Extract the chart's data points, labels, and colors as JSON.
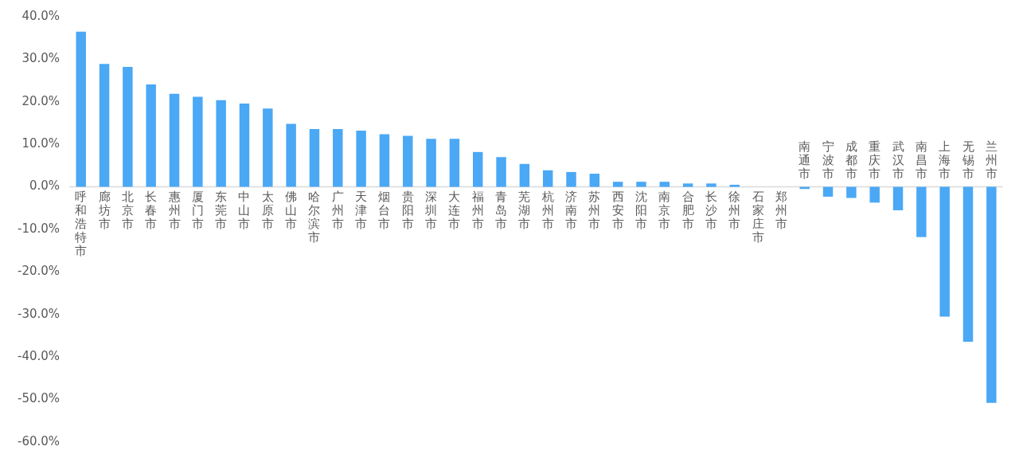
{
  "chart_data": {
    "type": "bar",
    "categories": [
      "呼和浩特市",
      "廊坊市",
      "北京市",
      "长春市",
      "惠州市",
      "厦门市",
      "东莞市",
      "中山市",
      "太原市",
      "佛山市",
      "哈尔滨市",
      "广州市",
      "天津市",
      "烟台市",
      "贵阳市",
      "深圳市",
      "大连市",
      "福州市",
      "青岛市",
      "芜湖市",
      "杭州市",
      "济南市",
      "苏州市",
      "西安市",
      "沈阳市",
      "南京市",
      "合肥市",
      "长沙市",
      "徐州市",
      "石家庄市",
      "郑州市",
      "南通市",
      "宁波市",
      "成都市",
      "重庆市",
      "武汉市",
      "南昌市",
      "上海市",
      "无锡市",
      "兰州市"
    ],
    "values": [
      36.5,
      28.9,
      28.2,
      24.1,
      21.9,
      21.2,
      20.4,
      19.6,
      18.4,
      14.8,
      13.6,
      13.6,
      13.2,
      12.4,
      12.0,
      11.3,
      11.3,
      8.2,
      7.0,
      5.4,
      3.9,
      3.5,
      3.1,
      1.2,
      1.2,
      1.2,
      0.8,
      0.8,
      0.5,
      0,
      0,
      -0.5,
      -2.3,
      -2.6,
      -3.7,
      -5.5,
      -11.8,
      -30.5,
      -36.4,
      -50.8
    ],
    "color": "#4aa8f5",
    "ylim": [
      -60,
      40
    ],
    "yticks": [
      {
        "value": 40,
        "label": "40.0%"
      },
      {
        "value": 30,
        "label": "30.0%"
      },
      {
        "value": 20,
        "label": "20.0%"
      },
      {
        "value": 10,
        "label": "10.0%"
      },
      {
        "value": 0,
        "label": "0.0%"
      },
      {
        "value": -10,
        "label": "-10.0%"
      },
      {
        "value": -20,
        "label": "-20.0%"
      },
      {
        "value": -30,
        "label": "-30.0%"
      },
      {
        "value": -40,
        "label": "-40.0%"
      },
      {
        "value": -50,
        "label": "-50.0%"
      },
      {
        "value": -60,
        "label": "-60.0%"
      }
    ],
    "grid": false,
    "legend": false
  }
}
